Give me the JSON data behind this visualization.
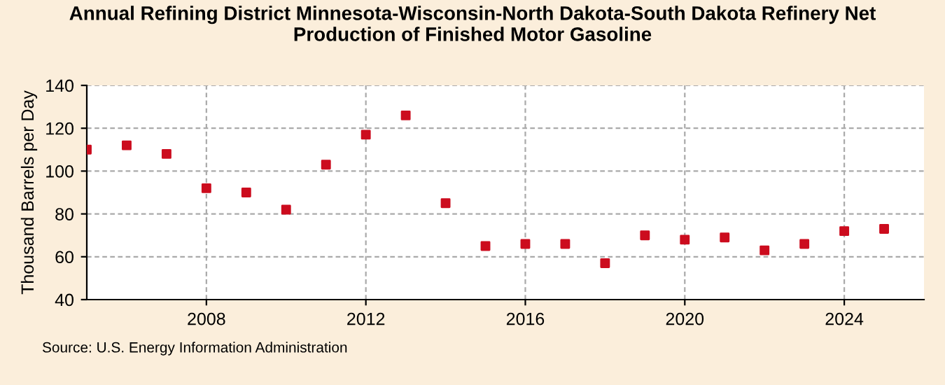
{
  "chart_data": {
    "type": "scatter",
    "title": "Annual Refining District Minnesota-Wisconsin-North Dakota-South Dakota Refinery Net\nProduction of Finished Motor Gasoline",
    "ylabel": "Thousand Barrels per Day",
    "annotations": [
      "Source: U.S. Energy Information Administration"
    ],
    "x": [
      2005,
      2006,
      2007,
      2008,
      2009,
      2010,
      2011,
      2012,
      2013,
      2014,
      2015,
      2016,
      2017,
      2018,
      2019,
      2020,
      2021,
      2022,
      2023,
      2024,
      2025
    ],
    "series": [
      {
        "color": "#cc0c1e",
        "values": [
          110,
          112,
          108,
          92,
          90,
          82,
          103,
          117,
          126,
          85,
          65,
          66,
          66,
          57,
          70,
          68,
          69,
          63,
          66,
          72,
          73
        ]
      }
    ],
    "xlim": [
      2005,
      2026
    ],
    "xticks": [
      2008,
      2012,
      2016,
      2020,
      2024
    ],
    "ylim": [
      40,
      140
    ],
    "yticks": [
      40,
      60,
      80,
      100,
      120,
      140
    ],
    "grid": true,
    "marker": "square"
  }
}
